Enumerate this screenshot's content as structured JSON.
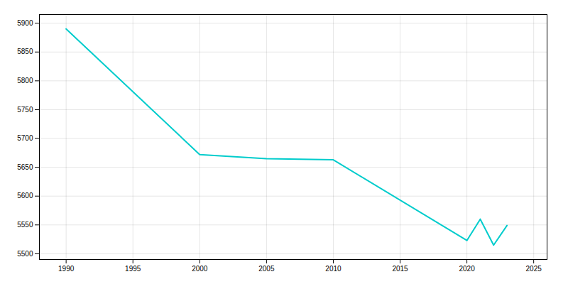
{
  "chart_data": {
    "type": "line",
    "x": [
      1990,
      2000,
      2005,
      2010,
      2020,
      2021,
      2022,
      2023
    ],
    "values": [
      5890,
      5672,
      5665,
      5663,
      5523,
      5560,
      5515,
      5549
    ],
    "color": "#00CCCC",
    "xlim": [
      1988,
      2026
    ],
    "ylim": [
      5490,
      5915
    ],
    "xticks": [
      1990,
      1995,
      2000,
      2005,
      2010,
      2015,
      2020,
      2025
    ],
    "yticks": [
      5500,
      5550,
      5600,
      5650,
      5700,
      5750,
      5800,
      5850,
      5900
    ],
    "grid": true
  }
}
